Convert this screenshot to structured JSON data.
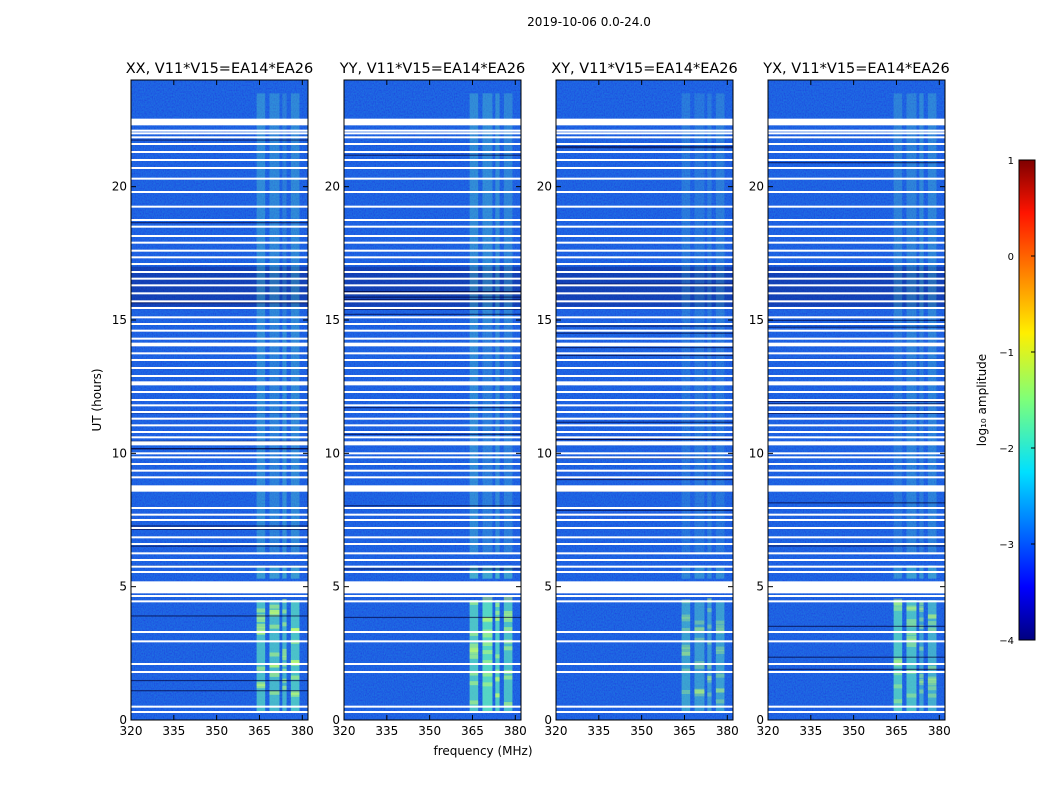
{
  "chart_data": {
    "type": "heatmap",
    "suptitle": "2019-10-06 0.0-24.0",
    "xlabel": "frequency (MHz)",
    "ylabel": "UT (hours)",
    "xlim": [
      320,
      382
    ],
    "ylim": [
      0,
      24
    ],
    "xticks": [
      "320",
      "335",
      "350",
      "365",
      "380"
    ],
    "yticks": [
      "0",
      "5",
      "10",
      "15",
      "20"
    ],
    "panels": [
      {
        "title": "XX, V11*V15=EA14*EA26",
        "rfi_strength": 1.0,
        "upper_band_strength": 0.85
      },
      {
        "title": "YY, V11*V15=EA14*EA26",
        "rfi_strength": 1.0,
        "upper_band_strength": 1.0
      },
      {
        "title": "XY, V11*V15=EA14*EA26",
        "rfi_strength": 0.6,
        "upper_band_strength": 0.7
      },
      {
        "title": "YX, V11*V15=EA14*EA26",
        "rfi_strength": 0.75,
        "upper_band_strength": 0.85
      }
    ],
    "rfi_channels_mhz": [
      [
        364,
        367
      ],
      [
        368.5,
        372
      ],
      [
        373,
        374.5
      ],
      [
        376,
        379
      ]
    ],
    "flagged_ut_hours": [
      0.3,
      0.5,
      1.8,
      2.1,
      2.95,
      3.3,
      4.45,
      4.65,
      4.8,
      5.0,
      5.15,
      5.55,
      5.75,
      6.0,
      6.25,
      6.6,
      6.85,
      7.2,
      7.5,
      7.7,
      7.95,
      8.6,
      8.75,
      9.1,
      9.35,
      9.6,
      9.85,
      10.0,
      10.35,
      10.6,
      10.8,
      11.05,
      11.3,
      11.55,
      11.8,
      12.0,
      12.3,
      12.6,
      12.9,
      13.2,
      13.5,
      13.75,
      14.05,
      14.3,
      14.6,
      14.85,
      15.1,
      15.45,
      15.7,
      16.0,
      16.3,
      16.55,
      16.8,
      17.1,
      17.35,
      17.6,
      17.9,
      18.15,
      18.5,
      18.75,
      19.25,
      19.8,
      20.3,
      20.7,
      21.0,
      21.3,
      21.6,
      21.85,
      22.0,
      22.1
    ],
    "colorbar": {
      "label": "log₁₀ amplitude",
      "ticks": [
        "1",
        "0",
        "−1",
        "−2",
        "−3",
        "−4"
      ],
      "range": [
        -4,
        1
      ],
      "colormap": "jet"
    },
    "colors": {
      "background_low": "#0a2ad0",
      "rfi": "#5ee8c0",
      "flag": "#ffffff"
    }
  }
}
